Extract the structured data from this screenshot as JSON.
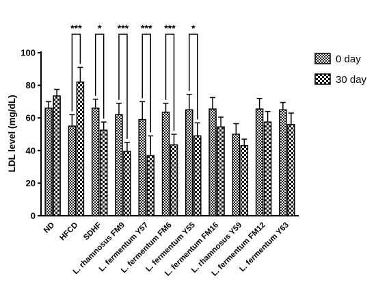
{
  "chart_data": {
    "type": "bar",
    "ylabel": "LDL level (mg/dL)",
    "xlabel": "",
    "ylim": [
      0,
      100
    ],
    "yticks": [
      0,
      20,
      40,
      60,
      80,
      100
    ],
    "categories": [
      "ND",
      "HFCD",
      "SDHF",
      "L. rhamnosus FM9",
      "L. fermentum Y57",
      "L. fermentum FM6",
      "L. fermentum Y55",
      "L. fermentum FM16",
      "L. rhamnosus Y59",
      "L. fermentum FM12",
      "L. fermentum Y63"
    ],
    "series": [
      {
        "name": "0 day",
        "pattern": "checker-fine",
        "values": [
          66,
          55,
          66,
          62,
          59,
          63.5,
          65,
          65.5,
          50,
          65.5,
          65
        ],
        "errors": [
          4,
          7,
          5.5,
          7,
          11,
          5.5,
          9.5,
          7,
          6.5,
          6.5,
          4.5
        ]
      },
      {
        "name": "30 day",
        "pattern": "checker-coarse",
        "values": [
          73.5,
          82,
          52.5,
          39.5,
          37,
          43.5,
          49,
          54.5,
          43,
          57.5,
          56
        ],
        "errors": [
          4,
          9,
          5,
          5.5,
          12,
          6.5,
          8,
          6,
          4,
          6.5,
          7
        ]
      }
    ],
    "significance": [
      {
        "category": "HFCD",
        "label": "***"
      },
      {
        "category": "SDHF",
        "label": "*"
      },
      {
        "category": "L. rhamnosus FM9",
        "label": "***"
      },
      {
        "category": "L. fermentum Y57",
        "label": "***"
      },
      {
        "category": "L. fermentum FM6",
        "label": "***"
      },
      {
        "category": "L. fermentum Y55",
        "label": "*"
      }
    ],
    "legend_position": "top-right",
    "grid": false
  }
}
